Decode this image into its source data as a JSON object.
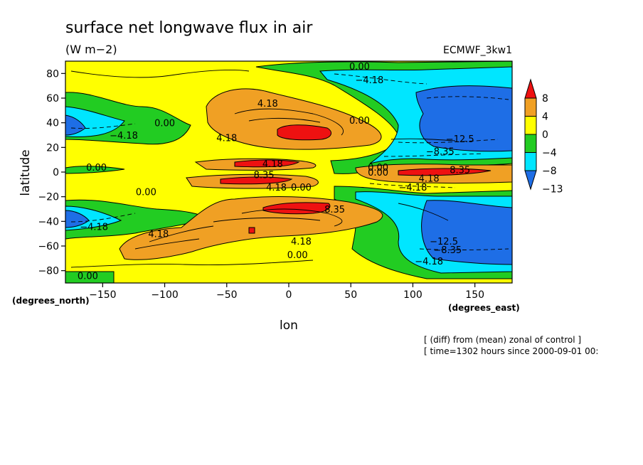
{
  "chart_data": {
    "type": "heatmap",
    "title": "surface net longwave flux in air",
    "units": "(W m−2)",
    "dataset": "ECMWF_3kw1",
    "xlabel": "lon",
    "ylabel": "latitude",
    "x_units": "(degrees_east)",
    "y_units": "(degrees_north)",
    "xlim": [
      -180,
      180
    ],
    "ylim": [
      -90,
      90
    ],
    "x_ticks": [
      -150,
      -100,
      -50,
      0,
      50,
      100,
      150
    ],
    "y_ticks": [
      -80,
      -60,
      -40,
      -20,
      0,
      20,
      40,
      60,
      80
    ],
    "x_tick_labels": [
      "−150",
      "−100",
      "−50",
      "0",
      "50",
      "100",
      "150"
    ],
    "y_tick_labels": [
      "−80",
      "−60",
      "−40",
      "−20",
      "0",
      "20",
      "40",
      "60",
      "80"
    ],
    "colorbar": {
      "boundaries": [
        -13,
        -8,
        -4,
        0,
        4,
        8
      ],
      "tick_labels": [
        "8",
        "4",
        "0",
        "−4",
        "−8",
        "−13"
      ],
      "colors": [
        "#1e6ee6",
        "#00e6ff",
        "#22cc22",
        "#ffff00",
        "#f0a024",
        "#ee1111"
      ]
    },
    "contour_labels": [
      {
        "text": "0.00",
        "lon": 57,
        "lat": 86
      },
      {
        "text": "−4.18",
        "lon": 65,
        "lat": 75
      },
      {
        "text": "4.18",
        "lon": -17,
        "lat": 56
      },
      {
        "text": "0.00",
        "lon": 57,
        "lat": 42
      },
      {
        "text": "0.00",
        "lon": -100,
        "lat": 40
      },
      {
        "text": "−4.18",
        "lon": -133,
        "lat": 30
      },
      {
        "text": "4.18",
        "lon": -50,
        "lat": 28
      },
      {
        "text": "−12.5",
        "lon": 138,
        "lat": 27
      },
      {
        "text": "−8.35",
        "lon": 122,
        "lat": 17
      },
      {
        "text": "4.18",
        "lon": -13,
        "lat": 7
      },
      {
        "text": "0.00",
        "lon": -155,
        "lat": 4
      },
      {
        "text": "0.00",
        "lon": 72,
        "lat": 4
      },
      {
        "text": "0.00",
        "lon": 72,
        "lat": 0
      },
      {
        "text": "8.35",
        "lon": -20,
        "lat": -2
      },
      {
        "text": "8.35",
        "lon": 138,
        "lat": 2
      },
      {
        "text": "4.18",
        "lon": 113,
        "lat": -5
      },
      {
        "text": "−4.18",
        "lon": 100,
        "lat": -12
      },
      {
        "text": "4.18",
        "lon": -10,
        "lat": -12
      },
      {
        "text": "0.00",
        "lon": 10,
        "lat": -12
      },
      {
        "text": "0.00",
        "lon": -115,
        "lat": -16
      },
      {
        "text": "8.35",
        "lon": 37,
        "lat": -30
      },
      {
        "text": "−4.18",
        "lon": -157,
        "lat": -44
      },
      {
        "text": "4.18",
        "lon": -105,
        "lat": -50
      },
      {
        "text": "4.18",
        "lon": 10,
        "lat": -56
      },
      {
        "text": "−12.5",
        "lon": 125,
        "lat": -56
      },
      {
        "text": "−8.35",
        "lon": 128,
        "lat": -63
      },
      {
        "text": "0.00",
        "lon": 7,
        "lat": -67
      },
      {
        "text": "−4.18",
        "lon": 113,
        "lat": -72
      },
      {
        "text": "0.00",
        "lon": -162,
        "lat": -84
      }
    ]
  },
  "footnotes": {
    "line1": "[ (diff) from (mean) zonal of control ]",
    "line2": "[ time=1302 hours since 2000-09-01 00:"
  }
}
